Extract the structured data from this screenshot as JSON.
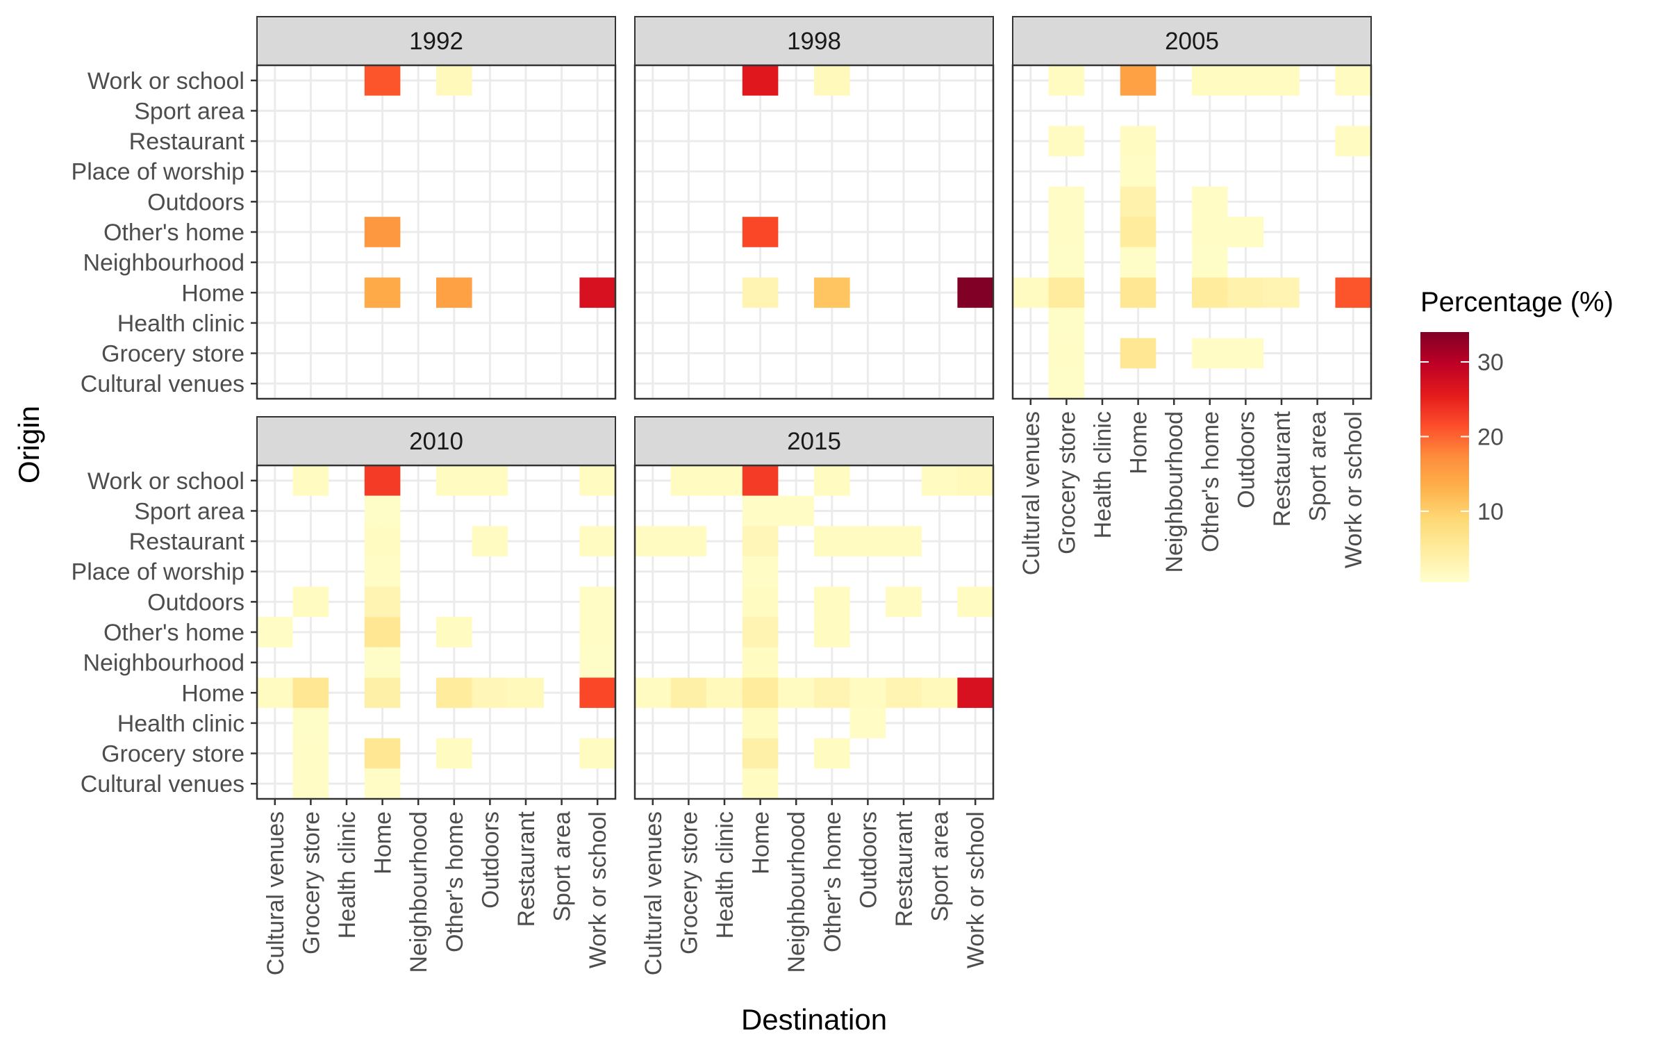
{
  "chart_data": {
    "type": "heatmap",
    "facet_variable": "year",
    "xlabel": "Destination",
    "ylabel": "Origin",
    "legend": {
      "title": "Percentage (%)",
      "ticks": [
        10,
        20,
        30
      ],
      "range": [
        0.5,
        34
      ],
      "colors": [
        "#ffffcc",
        "#ffeda0",
        "#fed976",
        "#feb24c",
        "#fd8d3c",
        "#fc4e2a",
        "#e31a1c",
        "#bd0026",
        "#800026"
      ],
      "position": "right"
    },
    "x_categories": [
      "Cultural venues",
      "Grocery store",
      "Health clinic",
      "Home",
      "Neighbourhood",
      "Other's home",
      "Outdoors",
      "Restaurant",
      "Sport area",
      "Work or school"
    ],
    "y_categories": [
      "Cultural venues",
      "Grocery store",
      "Health clinic",
      "Home",
      "Neighbourhood",
      "Other's home",
      "Outdoors",
      "Place of worship",
      "Restaurant",
      "Sport area",
      "Work or school"
    ],
    "panels": [
      {
        "label": "1992",
        "cells": [
          {
            "origin": "Work or school",
            "destination": "Home",
            "value": 21
          },
          {
            "origin": "Work or school",
            "destination": "Other's home",
            "value": 2
          },
          {
            "origin": "Other's home",
            "destination": "Home",
            "value": 16
          },
          {
            "origin": "Home",
            "destination": "Home",
            "value": 14
          },
          {
            "origin": "Home",
            "destination": "Other's home",
            "value": 15
          },
          {
            "origin": "Home",
            "destination": "Work or school",
            "value": 27
          }
        ]
      },
      {
        "label": "1998",
        "cells": [
          {
            "origin": "Work or school",
            "destination": "Home",
            "value": 26
          },
          {
            "origin": "Work or school",
            "destination": "Other's home",
            "value": 2
          },
          {
            "origin": "Other's home",
            "destination": "Home",
            "value": 22
          },
          {
            "origin": "Home",
            "destination": "Home",
            "value": 3
          },
          {
            "origin": "Home",
            "destination": "Other's home",
            "value": 11
          },
          {
            "origin": "Home",
            "destination": "Work or school",
            "value": 34
          }
        ]
      },
      {
        "label": "2005",
        "cells": [
          {
            "origin": "Work or school",
            "destination": "Grocery store",
            "value": 1.5
          },
          {
            "origin": "Work or school",
            "destination": "Home",
            "value": 15
          },
          {
            "origin": "Work or school",
            "destination": "Other's home",
            "value": 1.5
          },
          {
            "origin": "Work or school",
            "destination": "Outdoors",
            "value": 1.5
          },
          {
            "origin": "Work or school",
            "destination": "Restaurant",
            "value": 1.5
          },
          {
            "origin": "Work or school",
            "destination": "Work or school",
            "value": 1.5
          },
          {
            "origin": "Restaurant",
            "destination": "Grocery store",
            "value": 1.5
          },
          {
            "origin": "Restaurant",
            "destination": "Home",
            "value": 1.5
          },
          {
            "origin": "Restaurant",
            "destination": "Work or school",
            "value": 1.5
          },
          {
            "origin": "Place of worship",
            "destination": "Home",
            "value": 1.2
          },
          {
            "origin": "Outdoors",
            "destination": "Grocery store",
            "value": 1.2
          },
          {
            "origin": "Outdoors",
            "destination": "Home",
            "value": 3.5
          },
          {
            "origin": "Outdoors",
            "destination": "Other's home",
            "value": 1.2
          },
          {
            "origin": "Other's home",
            "destination": "Grocery store",
            "value": 1.2
          },
          {
            "origin": "Other's home",
            "destination": "Home",
            "value": 5
          },
          {
            "origin": "Other's home",
            "destination": "Other's home",
            "value": 1.2
          },
          {
            "origin": "Other's home",
            "destination": "Outdoors",
            "value": 1.2
          },
          {
            "origin": "Neighbourhood",
            "destination": "Grocery store",
            "value": 1
          },
          {
            "origin": "Neighbourhood",
            "destination": "Home",
            "value": 1
          },
          {
            "origin": "Neighbourhood",
            "destination": "Other's home",
            "value": 1
          },
          {
            "origin": "Home",
            "destination": "Cultural venues",
            "value": 1.5
          },
          {
            "origin": "Home",
            "destination": "Grocery store",
            "value": 5
          },
          {
            "origin": "Home",
            "destination": "Home",
            "value": 6
          },
          {
            "origin": "Home",
            "destination": "Other's home",
            "value": 5
          },
          {
            "origin": "Home",
            "destination": "Outdoors",
            "value": 3.5
          },
          {
            "origin": "Home",
            "destination": "Restaurant",
            "value": 3
          },
          {
            "origin": "Home",
            "destination": "Work or school",
            "value": 21
          },
          {
            "origin": "Health clinic",
            "destination": "Grocery store",
            "value": 1
          },
          {
            "origin": "Grocery store",
            "destination": "Grocery store",
            "value": 1.2
          },
          {
            "origin": "Grocery store",
            "destination": "Home",
            "value": 6
          },
          {
            "origin": "Grocery store",
            "destination": "Other's home",
            "value": 1.2
          },
          {
            "origin": "Grocery store",
            "destination": "Outdoors",
            "value": 1.2
          },
          {
            "origin": "Cultural venues",
            "destination": "Grocery store",
            "value": 1
          }
        ]
      },
      {
        "label": "2010",
        "cells": [
          {
            "origin": "Work or school",
            "destination": "Grocery store",
            "value": 1.5
          },
          {
            "origin": "Work or school",
            "destination": "Home",
            "value": 23
          },
          {
            "origin": "Work or school",
            "destination": "Other's home",
            "value": 1.5
          },
          {
            "origin": "Work or school",
            "destination": "Outdoors",
            "value": 1.5
          },
          {
            "origin": "Work or school",
            "destination": "Work or school",
            "value": 1.5
          },
          {
            "origin": "Sport area",
            "destination": "Home",
            "value": 1
          },
          {
            "origin": "Restaurant",
            "destination": "Home",
            "value": 1.5
          },
          {
            "origin": "Restaurant",
            "destination": "Outdoors",
            "value": 1.5
          },
          {
            "origin": "Restaurant",
            "destination": "Work or school",
            "value": 1.5
          },
          {
            "origin": "Place of worship",
            "destination": "Home",
            "value": 1.2
          },
          {
            "origin": "Outdoors",
            "destination": "Grocery store",
            "value": 1.5
          },
          {
            "origin": "Outdoors",
            "destination": "Home",
            "value": 3
          },
          {
            "origin": "Outdoors",
            "destination": "Work or school",
            "value": 1.2
          },
          {
            "origin": "Other's home",
            "destination": "Cultural venues",
            "value": 1.2
          },
          {
            "origin": "Other's home",
            "destination": "Home",
            "value": 6
          },
          {
            "origin": "Other's home",
            "destination": "Other's home",
            "value": 1.5
          },
          {
            "origin": "Other's home",
            "destination": "Work or school",
            "value": 1.2
          },
          {
            "origin": "Neighbourhood",
            "destination": "Home",
            "value": 1
          },
          {
            "origin": "Neighbourhood",
            "destination": "Work or school",
            "value": 1
          },
          {
            "origin": "Home",
            "destination": "Cultural venues",
            "value": 1.5
          },
          {
            "origin": "Home",
            "destination": "Grocery store",
            "value": 6
          },
          {
            "origin": "Home",
            "destination": "Home",
            "value": 4
          },
          {
            "origin": "Home",
            "destination": "Other's home",
            "value": 5
          },
          {
            "origin": "Home",
            "destination": "Outdoors",
            "value": 2.5
          },
          {
            "origin": "Home",
            "destination": "Restaurant",
            "value": 2
          },
          {
            "origin": "Home",
            "destination": "Work or school",
            "value": 22
          },
          {
            "origin": "Health clinic",
            "destination": "Grocery store",
            "value": 1
          },
          {
            "origin": "Grocery store",
            "destination": "Grocery store",
            "value": 1.2
          },
          {
            "origin": "Grocery store",
            "destination": "Home",
            "value": 6
          },
          {
            "origin": "Grocery store",
            "destination": "Other's home",
            "value": 1.5
          },
          {
            "origin": "Grocery store",
            "destination": "Work or school",
            "value": 1.5
          },
          {
            "origin": "Cultural venues",
            "destination": "Grocery store",
            "value": 1.2
          },
          {
            "origin": "Cultural venues",
            "destination": "Home",
            "value": 1.2
          }
        ]
      },
      {
        "label": "2015",
        "cells": [
          {
            "origin": "Work or school",
            "destination": "Grocery store",
            "value": 1.5
          },
          {
            "origin": "Work or school",
            "destination": "Health clinic",
            "value": 1.5
          },
          {
            "origin": "Work or school",
            "destination": "Home",
            "value": 23
          },
          {
            "origin": "Work or school",
            "destination": "Other's home",
            "value": 1.5
          },
          {
            "origin": "Work or school",
            "destination": "Sport area",
            "value": 1.5
          },
          {
            "origin": "Work or school",
            "destination": "Work or school",
            "value": 2
          },
          {
            "origin": "Sport area",
            "destination": "Home",
            "value": 1.2
          },
          {
            "origin": "Sport area",
            "destination": "Neighbourhood",
            "value": 1.2
          },
          {
            "origin": "Restaurant",
            "destination": "Cultural venues",
            "value": 1.5
          },
          {
            "origin": "Restaurant",
            "destination": "Grocery store",
            "value": 1.5
          },
          {
            "origin": "Restaurant",
            "destination": "Home",
            "value": 2.5
          },
          {
            "origin": "Restaurant",
            "destination": "Other's home",
            "value": 1.5
          },
          {
            "origin": "Restaurant",
            "destination": "Outdoors",
            "value": 1.5
          },
          {
            "origin": "Restaurant",
            "destination": "Restaurant",
            "value": 1.5
          },
          {
            "origin": "Place of worship",
            "destination": "Home",
            "value": 1.2
          },
          {
            "origin": "Outdoors",
            "destination": "Home",
            "value": 1.5
          },
          {
            "origin": "Outdoors",
            "destination": "Other's home",
            "value": 1.5
          },
          {
            "origin": "Outdoors",
            "destination": "Restaurant",
            "value": 1.5
          },
          {
            "origin": "Outdoors",
            "destination": "Work or school",
            "value": 1.5
          },
          {
            "origin": "Other's home",
            "destination": "Home",
            "value": 3
          },
          {
            "origin": "Other's home",
            "destination": "Other's home",
            "value": 1.5
          },
          {
            "origin": "Neighbourhood",
            "destination": "Home",
            "value": 1.5
          },
          {
            "origin": "Home",
            "destination": "Cultural venues",
            "value": 1.5
          },
          {
            "origin": "Home",
            "destination": "Grocery store",
            "value": 4
          },
          {
            "origin": "Home",
            "destination": "Health clinic",
            "value": 2
          },
          {
            "origin": "Home",
            "destination": "Home",
            "value": 5
          },
          {
            "origin": "Home",
            "destination": "Neighbourhood",
            "value": 1.5
          },
          {
            "origin": "Home",
            "destination": "Other's home",
            "value": 3
          },
          {
            "origin": "Home",
            "destination": "Outdoors",
            "value": 1.5
          },
          {
            "origin": "Home",
            "destination": "Restaurant",
            "value": 3
          },
          {
            "origin": "Home",
            "destination": "Sport area",
            "value": 2
          },
          {
            "origin": "Home",
            "destination": "Work or school",
            "value": 27
          },
          {
            "origin": "Health clinic",
            "destination": "Home",
            "value": 1.5
          },
          {
            "origin": "Health clinic",
            "destination": "Outdoors",
            "value": 1.2
          },
          {
            "origin": "Grocery store",
            "destination": "Home",
            "value": 4
          },
          {
            "origin": "Grocery store",
            "destination": "Other's home",
            "value": 1.5
          },
          {
            "origin": "Cultural venues",
            "destination": "Home",
            "value": 1.5
          }
        ]
      }
    ]
  }
}
